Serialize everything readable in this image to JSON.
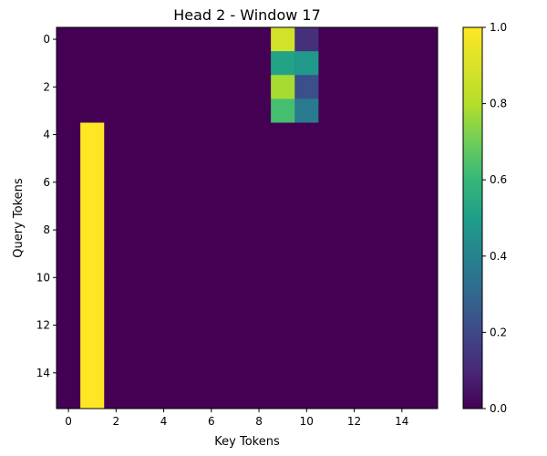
{
  "chart_data": {
    "type": "heatmap",
    "title": "Head 2 - Window 17",
    "xlabel": "Key Tokens",
    "ylabel": "Query Tokens",
    "rows": 16,
    "cols": 16,
    "x_ticks": [
      0,
      2,
      4,
      6,
      8,
      10,
      12,
      14
    ],
    "y_ticks": [
      0,
      2,
      4,
      6,
      8,
      10,
      12,
      14
    ],
    "colorbar": {
      "min": 0.0,
      "max": 1.0,
      "ticks": [
        "0.0",
        "0.2",
        "0.4",
        "0.6",
        "0.8",
        "1.0"
      ],
      "colormap": "viridis"
    },
    "nonzero_cells": [
      {
        "row": 0,
        "col": 9,
        "value": 0.88
      },
      {
        "row": 0,
        "col": 10,
        "value": 0.12
      },
      {
        "row": 1,
        "col": 9,
        "value": 0.52
      },
      {
        "row": 1,
        "col": 10,
        "value": 0.48
      },
      {
        "row": 2,
        "col": 9,
        "value": 0.78
      },
      {
        "row": 2,
        "col": 10,
        "value": 0.22
      },
      {
        "row": 3,
        "col": 9,
        "value": 0.63
      },
      {
        "row": 3,
        "col": 10,
        "value": 0.37
      },
      {
        "row": 4,
        "col": 1,
        "value": 1.0
      },
      {
        "row": 5,
        "col": 1,
        "value": 1.0
      },
      {
        "row": 6,
        "col": 1,
        "value": 1.0
      },
      {
        "row": 7,
        "col": 1,
        "value": 1.0
      },
      {
        "row": 8,
        "col": 1,
        "value": 1.0
      },
      {
        "row": 9,
        "col": 1,
        "value": 1.0
      },
      {
        "row": 10,
        "col": 1,
        "value": 1.0
      },
      {
        "row": 11,
        "col": 1,
        "value": 1.0
      },
      {
        "row": 12,
        "col": 1,
        "value": 1.0
      },
      {
        "row": 13,
        "col": 1,
        "value": 1.0
      },
      {
        "row": 14,
        "col": 1,
        "value": 1.0
      },
      {
        "row": 15,
        "col": 1,
        "value": 1.0
      }
    ]
  }
}
